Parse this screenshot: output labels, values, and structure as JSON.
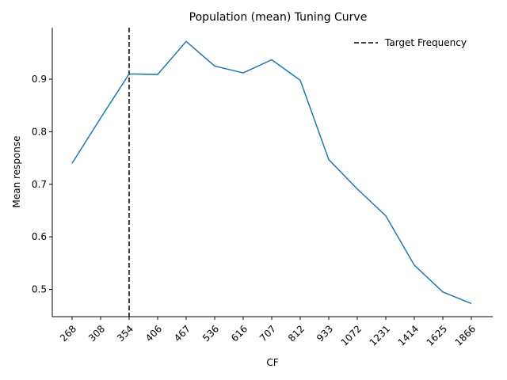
{
  "chart_data": {
    "type": "line",
    "title": "Population (mean) Tuning Curve",
    "xlabel": "CF",
    "ylabel": "Mean response",
    "categories": [
      "268",
      "308",
      "354",
      "406",
      "467",
      "536",
      "616",
      "707",
      "812",
      "933",
      "1072",
      "1231",
      "1414",
      "1625",
      "1866"
    ],
    "series": [
      {
        "values": [
          0.74,
          0.826,
          0.91,
          0.909,
          0.972,
          0.925,
          0.912,
          0.937,
          0.898,
          0.747,
          0.691,
          0.64,
          0.546,
          0.495,
          0.473
        ],
        "color": "#1f77b4"
      }
    ],
    "target_line": {
      "category": "354",
      "label": "Target Frequency",
      "color": "#000000",
      "style": "dashed"
    },
    "yticks": [
      "0.5",
      "0.6",
      "0.7",
      "0.8",
      "0.9"
    ],
    "ylim": [
      0.448,
      0.998
    ],
    "legend_position": "top-right",
    "grid": false,
    "x_tick_rotation": "45"
  }
}
